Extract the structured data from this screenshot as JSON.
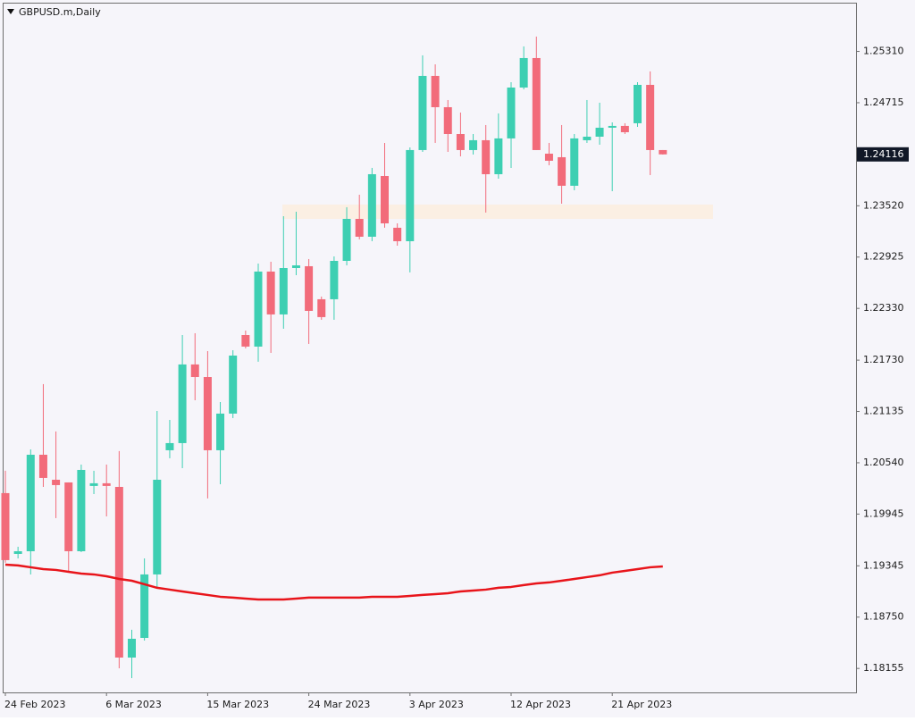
{
  "chart_data": {
    "type": "candlestick",
    "title": "GBPUSD.m,Daily",
    "categories": [
      "24 Feb 2023",
      null,
      null,
      null,
      null,
      null,
      null,
      null,
      "6 Mar 2023",
      null,
      null,
      null,
      null,
      null,
      null,
      null,
      "15 Mar 2023",
      null,
      null,
      null,
      null,
      null,
      null,
      null,
      "24 Mar 2023",
      null,
      null,
      null,
      null,
      null,
      null,
      null,
      "3 Apr 2023",
      null,
      null,
      null,
      null,
      null,
      null,
      null,
      "12 Apr 2023",
      null,
      null,
      null,
      null,
      null,
      null,
      null,
      "21 Apr 2023",
      null,
      null,
      null,
      null
    ],
    "open": [
      1.20188,
      1.19483,
      1.19514,
      1.20633,
      1.20343,
      1.20312,
      1.19514,
      1.20271,
      1.20302,
      1.2026,
      1.18281,
      1.18509,
      1.19245,
      1.20685,
      1.20768,
      1.2168,
      1.21534,
      1.20685,
      1.2111,
      1.22021,
      1.21887,
      1.22757,
      1.2226,
      1.22798,
      1.22819,
      1.22436,
      1.22436,
      1.22881,
      1.23368,
      1.23161,
      1.23865,
      1.23265,
      1.23109,
      1.24166,
      1.25026,
      1.24663,
      1.24352,
      1.24166,
      1.2428,
      1.23886,
      1.24301,
      1.24891,
      1.25233,
      1.24124,
      1.24083,
      1.23752,
      1.2428,
      1.24321,
      1.24425,
      1.24446,
      1.24477,
      1.24922,
      1.24166
    ],
    "high": [
      1.20447,
      1.19566,
      1.20695,
      1.21452,
      1.20903,
      1.20312,
      1.20519,
      1.20447,
      1.20519,
      1.20675,
      1.18603,
      1.19431,
      1.21141,
      1.21037,
      1.22021,
      1.22042,
      1.21835,
      1.21244,
      1.21845,
      1.22073,
      1.2285,
      1.22871,
      1.23399,
      1.23451,
      1.22902,
      1.22467,
      1.22933,
      1.23503,
      1.23648,
      1.23959,
      1.24249,
      1.23316,
      1.24197,
      1.25264,
      1.2516,
      1.24746,
      1.24601,
      1.24352,
      1.24456,
      1.24591,
      1.24953,
      1.25368,
      1.25482,
      1.24249,
      1.24456,
      1.24352,
      1.24746,
      1.24715,
      1.24487,
      1.24477,
      1.24953,
      1.25078,
      1.24166
    ],
    "low": [
      1.1938,
      1.19431,
      1.19245,
      1.2026,
      1.19898,
      1.19276,
      1.19504,
      1.20177,
      1.19918,
      1.18157,
      1.18043,
      1.18478,
      1.1909,
      1.20592,
      1.20478,
      1.21265,
      1.20126,
      1.20291,
      1.21058,
      1.21866,
      1.21711,
      1.21814,
      1.22094,
      1.22715,
      1.21918,
      1.22198,
      1.22198,
      1.22829,
      1.2313,
      1.23109,
      1.23265,
      1.23057,
      1.22747,
      1.24145,
      1.24249,
      1.24145,
      1.24093,
      1.24114,
      1.23441,
      1.23834,
      1.23959,
      1.2487,
      1.24166,
      1.2399,
      1.23544,
      1.237,
      1.24249,
      1.24228,
      1.23689,
      1.24352,
      1.24435,
      1.23876,
      1.24114
    ],
    "close": [
      1.19411,
      1.19514,
      1.20633,
      1.20364,
      1.20281,
      1.19514,
      1.20457,
      1.20302,
      1.20271,
      1.18281,
      1.18499,
      1.19245,
      1.20343,
      1.20768,
      1.2168,
      1.21534,
      1.20685,
      1.2111,
      1.21783,
      1.21887,
      1.22757,
      1.2226,
      1.22798,
      1.22829,
      1.22301,
      1.22229,
      1.22881,
      1.23368,
      1.23161,
      1.23886,
      1.23316,
      1.23109,
      1.24166,
      1.25026,
      1.24663,
      1.24352,
      1.24166,
      1.2428,
      1.23886,
      1.24301,
      1.24891,
      1.25233,
      1.24166,
      1.24042,
      1.23752,
      1.24301,
      1.24321,
      1.24425,
      1.24446,
      1.24373,
      1.24922,
      1.24166,
      1.24116
    ],
    "up_color": "#3dcfb2",
    "down_color": "#f26b7a",
    "moving_average": {
      "color": "#e8141a",
      "values": [
        1.19359,
        1.19349,
        1.19328,
        1.19307,
        1.19297,
        1.19276,
        1.19255,
        1.19245,
        1.19224,
        1.19193,
        1.19172,
        1.19131,
        1.1909,
        1.19069,
        1.19048,
        1.19027,
        1.19007,
        1.18986,
        1.18976,
        1.18965,
        1.18955,
        1.18955,
        1.18955,
        1.18965,
        1.18976,
        1.18976,
        1.18976,
        1.18976,
        1.18976,
        1.18986,
        1.18986,
        1.18986,
        1.18996,
        1.19007,
        1.19017,
        1.19027,
        1.19048,
        1.19058,
        1.19069,
        1.1909,
        1.191,
        1.19121,
        1.19141,
        1.19152,
        1.19172,
        1.19193,
        1.19214,
        1.19235,
        1.19266,
        1.19286,
        1.19307,
        1.19328,
        1.19338
      ]
    },
    "zone": {
      "top": 1.23534,
      "bottom": 1.23368,
      "color": "#fbefe3"
    },
    "last_price": 1.24116,
    "ylim": [
      1.17877,
      1.25875
    ],
    "yticks": [
      {
        "value": 1.2531,
        "label": "1.25310"
      },
      1.24715,
      {
        "value": 1.2352,
        "label": "1.23520"
      },
      1.22925,
      {
        "value": 1.2233,
        "label": "1.22330"
      },
      {
        "value": 1.2173,
        "label": "1.21730"
      },
      1.21135,
      {
        "value": 1.2054,
        "label": "1.20540"
      },
      1.19945,
      1.19345,
      {
        "value": 1.1875,
        "label": "1.18750"
      },
      1.18155
    ]
  }
}
